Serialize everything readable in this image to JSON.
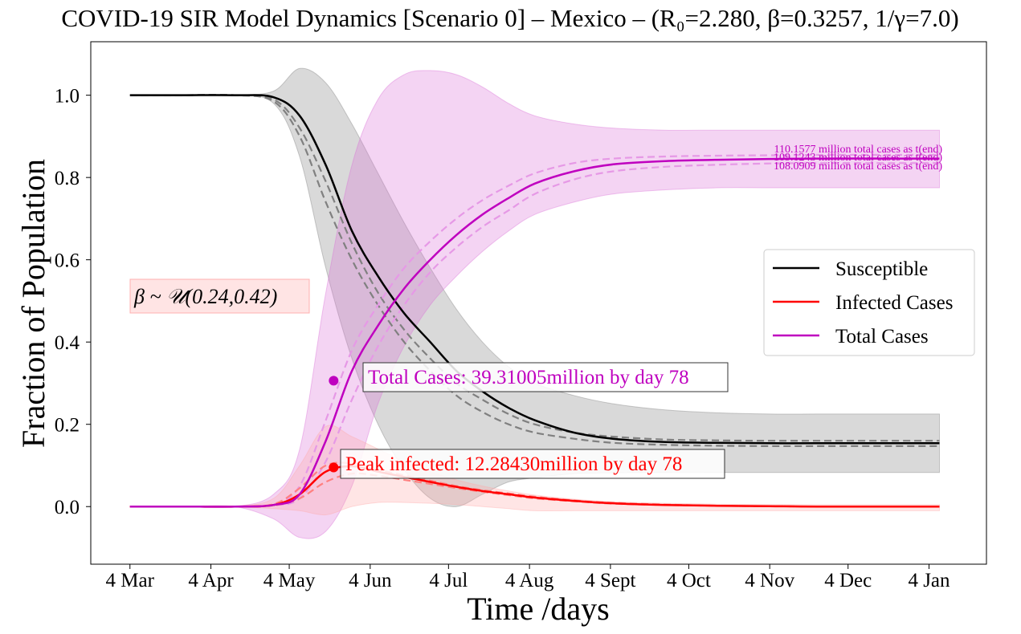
{
  "chart_data": {
    "type": "line",
    "title": "COVID-19 SIR Model Dynamics [Scenario 0] – Mexico – (R₀=2.280, β=0.3257, 1/γ=7.0)",
    "xlabel": "Time /days",
    "ylabel": "Fraction of Population",
    "x_start": "2020-03-04",
    "xlim": [
      "2020-02-18",
      "2021-01-26"
    ],
    "ylim": [
      -0.14,
      1.13
    ],
    "x_ticks": [
      {
        "label": "4 Mar",
        "date": "2020-03-04"
      },
      {
        "label": "4 Apr",
        "date": "2020-04-04"
      },
      {
        "label": "4 May",
        "date": "2020-05-04"
      },
      {
        "label": "4 Jun",
        "date": "2020-06-04"
      },
      {
        "label": "4 Jul",
        "date": "2020-07-04"
      },
      {
        "label": "4 Aug",
        "date": "2020-08-04"
      },
      {
        "label": "4 Sept",
        "date": "2020-09-04"
      },
      {
        "label": "4 Oct",
        "date": "2020-10-04"
      },
      {
        "label": "4 Nov",
        "date": "2020-11-04"
      },
      {
        "label": "4 Dec",
        "date": "2020-12-04"
      },
      {
        "label": "4 Jan",
        "date": "2021-01-04"
      }
    ],
    "y_ticks": [
      "0.0",
      "0.2",
      "0.4",
      "0.6",
      "0.8",
      "1.0"
    ],
    "grid": false,
    "legend_position": "center-right",
    "legend": [
      {
        "label": "Susceptible",
        "color": "#000000"
      },
      {
        "label": "Infected Cases",
        "color": "#ff0000"
      },
      {
        "label": "Total Cases",
        "color": "#bf00bf"
      }
    ],
    "x": [
      "2020-03-04",
      "2020-03-24",
      "2020-04-13",
      "2020-04-28",
      "2020-05-08",
      "2020-05-18",
      "2020-05-28",
      "2020-06-07",
      "2020-06-17",
      "2020-06-27",
      "2020-07-07",
      "2020-07-17",
      "2020-07-27",
      "2020-08-06",
      "2020-08-21",
      "2020-09-05",
      "2020-09-25",
      "2020-10-15",
      "2020-11-04",
      "2020-11-24",
      "2020-12-24",
      "2021-01-08"
    ],
    "series": [
      {
        "name": "Susceptible",
        "color": "#000000",
        "values": [
          1.0,
          1.0,
          1.0,
          0.995,
          0.95,
          0.83,
          0.67,
          0.56,
          0.47,
          0.4,
          0.33,
          0.28,
          0.24,
          0.21,
          0.18,
          0.165,
          0.157,
          0.155,
          0.154,
          0.154,
          0.154,
          0.154
        ]
      },
      {
        "name": "Infected Cases",
        "color": "#ff0000",
        "values": [
          0.0,
          0.0,
          0.0,
          0.004,
          0.03,
          0.085,
          0.098,
          0.085,
          0.072,
          0.06,
          0.048,
          0.038,
          0.03,
          0.022,
          0.014,
          0.008,
          0.004,
          0.002,
          0.001,
          0.0,
          0.0,
          0.0
        ]
      },
      {
        "name": "Total Cases",
        "color": "#bf00bf",
        "values": [
          0.0,
          0.0,
          0.0,
          0.004,
          0.03,
          0.16,
          0.33,
          0.44,
          0.53,
          0.6,
          0.66,
          0.71,
          0.75,
          0.785,
          0.815,
          0.832,
          0.84,
          0.843,
          0.845,
          0.846,
          0.846,
          0.846
        ]
      }
    ],
    "bounds": [
      {
        "of": "Susceptible",
        "color": "#808080",
        "lower": [
          1.0,
          1.0,
          1.0,
          0.985,
          0.9,
          0.74,
          0.6,
          0.49,
          0.4,
          0.33,
          0.27,
          0.23,
          0.2,
          0.18,
          0.165,
          0.155,
          0.15,
          0.148,
          0.147,
          0.147,
          0.147,
          0.147
        ],
        "upper": [
          1.0,
          1.0,
          1.0,
          0.99,
          0.92,
          0.79,
          0.64,
          0.52,
          0.43,
          0.36,
          0.3,
          0.26,
          0.225,
          0.2,
          0.18,
          0.17,
          0.163,
          0.161,
          0.16,
          0.16,
          0.16,
          0.16
        ]
      },
      {
        "of": "Total Cases",
        "color": "#e699e6",
        "lower": [
          0.0,
          0.0,
          0.0,
          0.003,
          0.02,
          0.11,
          0.26,
          0.39,
          0.49,
          0.57,
          0.63,
          0.68,
          0.72,
          0.76,
          0.795,
          0.815,
          0.826,
          0.831,
          0.834,
          0.835,
          0.835,
          0.835
        ],
        "upper": [
          0.0,
          0.0,
          0.0,
          0.006,
          0.05,
          0.21,
          0.38,
          0.49,
          0.58,
          0.645,
          0.7,
          0.745,
          0.78,
          0.81,
          0.835,
          0.846,
          0.851,
          0.853,
          0.854,
          0.855,
          0.855,
          0.855
        ]
      },
      {
        "of": "Infected Cases",
        "color": "#ff8080",
        "lower": [
          0.0,
          0.0,
          0.0,
          0.003,
          0.02,
          0.06,
          0.08,
          0.075,
          0.065,
          0.055,
          0.045,
          0.036,
          0.028,
          0.02,
          0.013,
          0.007,
          0.004,
          0.002,
          0.001,
          0.0,
          0.0,
          0.0
        ],
        "upper": [
          0.0,
          0.0,
          0.0,
          0.006,
          0.045,
          0.1,
          0.105,
          0.09,
          0.076,
          0.063,
          0.05,
          0.04,
          0.032,
          0.024,
          0.015,
          0.009,
          0.005,
          0.002,
          0.001,
          0.0,
          0.0,
          0.0
        ]
      }
    ],
    "bands": [
      {
        "of": "Susceptible",
        "color": "#808080",
        "lower": [
          1.0,
          1.0,
          1.0,
          0.98,
          0.85,
          0.58,
          0.36,
          0.2,
          0.09,
          0.02,
          0.0,
          0.03,
          0.06,
          0.07,
          0.08,
          0.082,
          0.083,
          0.083,
          0.083,
          0.083,
          0.083,
          0.083
        ],
        "upper": [
          1.0,
          1.0,
          1.0,
          1.01,
          1.065,
          1.03,
          0.93,
          0.81,
          0.69,
          0.58,
          0.48,
          0.4,
          0.34,
          0.3,
          0.27,
          0.25,
          0.235,
          0.228,
          0.225,
          0.225,
          0.225,
          0.225
        ]
      },
      {
        "of": "Total Cases",
        "color": "#da70d6",
        "lower": [
          0.0,
          0.0,
          0.0,
          -0.03,
          -0.075,
          -0.06,
          0.05,
          0.25,
          0.39,
          0.49,
          0.56,
          0.62,
          0.67,
          0.71,
          0.74,
          0.76,
          0.77,
          0.775,
          0.775,
          0.775,
          0.775,
          0.775
        ],
        "upper": [
          0.0,
          0.0,
          0.0,
          0.03,
          0.14,
          0.52,
          0.83,
          0.99,
          1.05,
          1.06,
          1.05,
          1.02,
          0.98,
          0.95,
          0.93,
          0.92,
          0.915,
          0.915,
          0.915,
          0.915,
          0.915,
          0.915
        ]
      },
      {
        "of": "Infected Cases",
        "color": "#ffaaaa",
        "lower": [
          0.0,
          0.0,
          0.0,
          -0.005,
          -0.01,
          -0.02,
          0.0,
          0.01,
          0.01,
          0.008,
          0.005,
          0.0,
          -0.005,
          -0.01,
          -0.01,
          -0.01,
          -0.01,
          -0.01,
          -0.01,
          -0.01,
          -0.01,
          -0.01
        ],
        "upper": [
          0.0,
          0.0,
          0.0,
          0.02,
          0.1,
          0.195,
          0.17,
          0.14,
          0.11,
          0.085,
          0.065,
          0.05,
          0.038,
          0.028,
          0.018,
          0.012,
          0.008,
          0.006,
          0.005,
          0.005,
          0.005,
          0.005
        ]
      }
    ],
    "markers": [
      {
        "of": "Total Cases",
        "date": "2020-05-21",
        "y": 0.306,
        "color": "#bf00bf"
      },
      {
        "of": "Infected Cases",
        "date": "2020-05-21",
        "y": 0.095,
        "color": "#ff0000"
      }
    ],
    "annotations": {
      "total_label": "Total Cases: 39.31005million by day 78",
      "peak_label": "Peak infected: 12.28430million by day 78",
      "end_upper": "110.1577 million total cases as t(end)",
      "end_mid": "109.1243 million total cases as t(end)",
      "end_lower": "108.0909 million total cases as t(end)",
      "prior": "β ~ 𝒰(0.24,0.42)"
    }
  }
}
